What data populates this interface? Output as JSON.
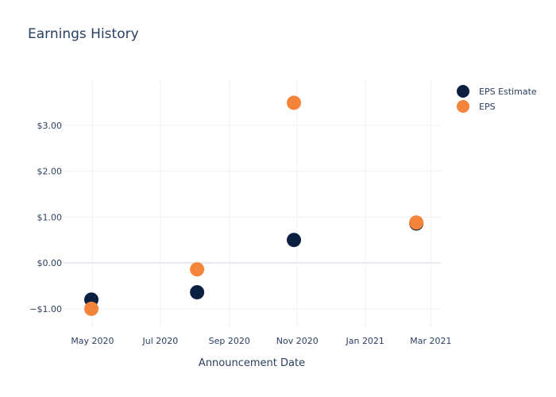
{
  "chart_data": {
    "type": "scatter",
    "title": "Earnings History",
    "xlabel": "Announcement Date",
    "ylabel": "",
    "x_range": [
      "2020-04-05",
      "2021-03-10"
    ],
    "ylim": [
      -1.4,
      4.0
    ],
    "x_ticks": [
      {
        "date": "2020-05-01",
        "label": "May 2020"
      },
      {
        "date": "2020-07-01",
        "label": "Jul 2020"
      },
      {
        "date": "2020-09-01",
        "label": "Sep 2020"
      },
      {
        "date": "2020-11-01",
        "label": "Nov 2020"
      },
      {
        "date": "2021-01-01",
        "label": "Jan 2021"
      },
      {
        "date": "2021-03-01",
        "label": "Mar 2021"
      }
    ],
    "y_ticks": [
      {
        "value": -1,
        "label": "−$1.00"
      },
      {
        "value": 0,
        "label": "$0.00"
      },
      {
        "value": 1,
        "label": "$1.00"
      },
      {
        "value": 2,
        "label": "$2.00"
      },
      {
        "value": 3,
        "label": "$3.00"
      }
    ],
    "grid": true,
    "legend_position": "top-right",
    "series": [
      {
        "name": "EPS Estimate",
        "color": "#0b1f41",
        "points": [
          {
            "x": "2020-04-30",
            "y": -0.8
          },
          {
            "x": "2020-08-03",
            "y": -0.64
          },
          {
            "x": "2020-10-29",
            "y": 0.5
          },
          {
            "x": "2021-02-16",
            "y": 0.86
          }
        ]
      },
      {
        "name": "EPS",
        "color": "#f4843a",
        "points": [
          {
            "x": "2020-04-30",
            "y": -1.0
          },
          {
            "x": "2020-08-03",
            "y": -0.14
          },
          {
            "x": "2020-10-29",
            "y": 3.49
          },
          {
            "x": "2021-02-16",
            "y": 0.88
          }
        ]
      }
    ]
  }
}
